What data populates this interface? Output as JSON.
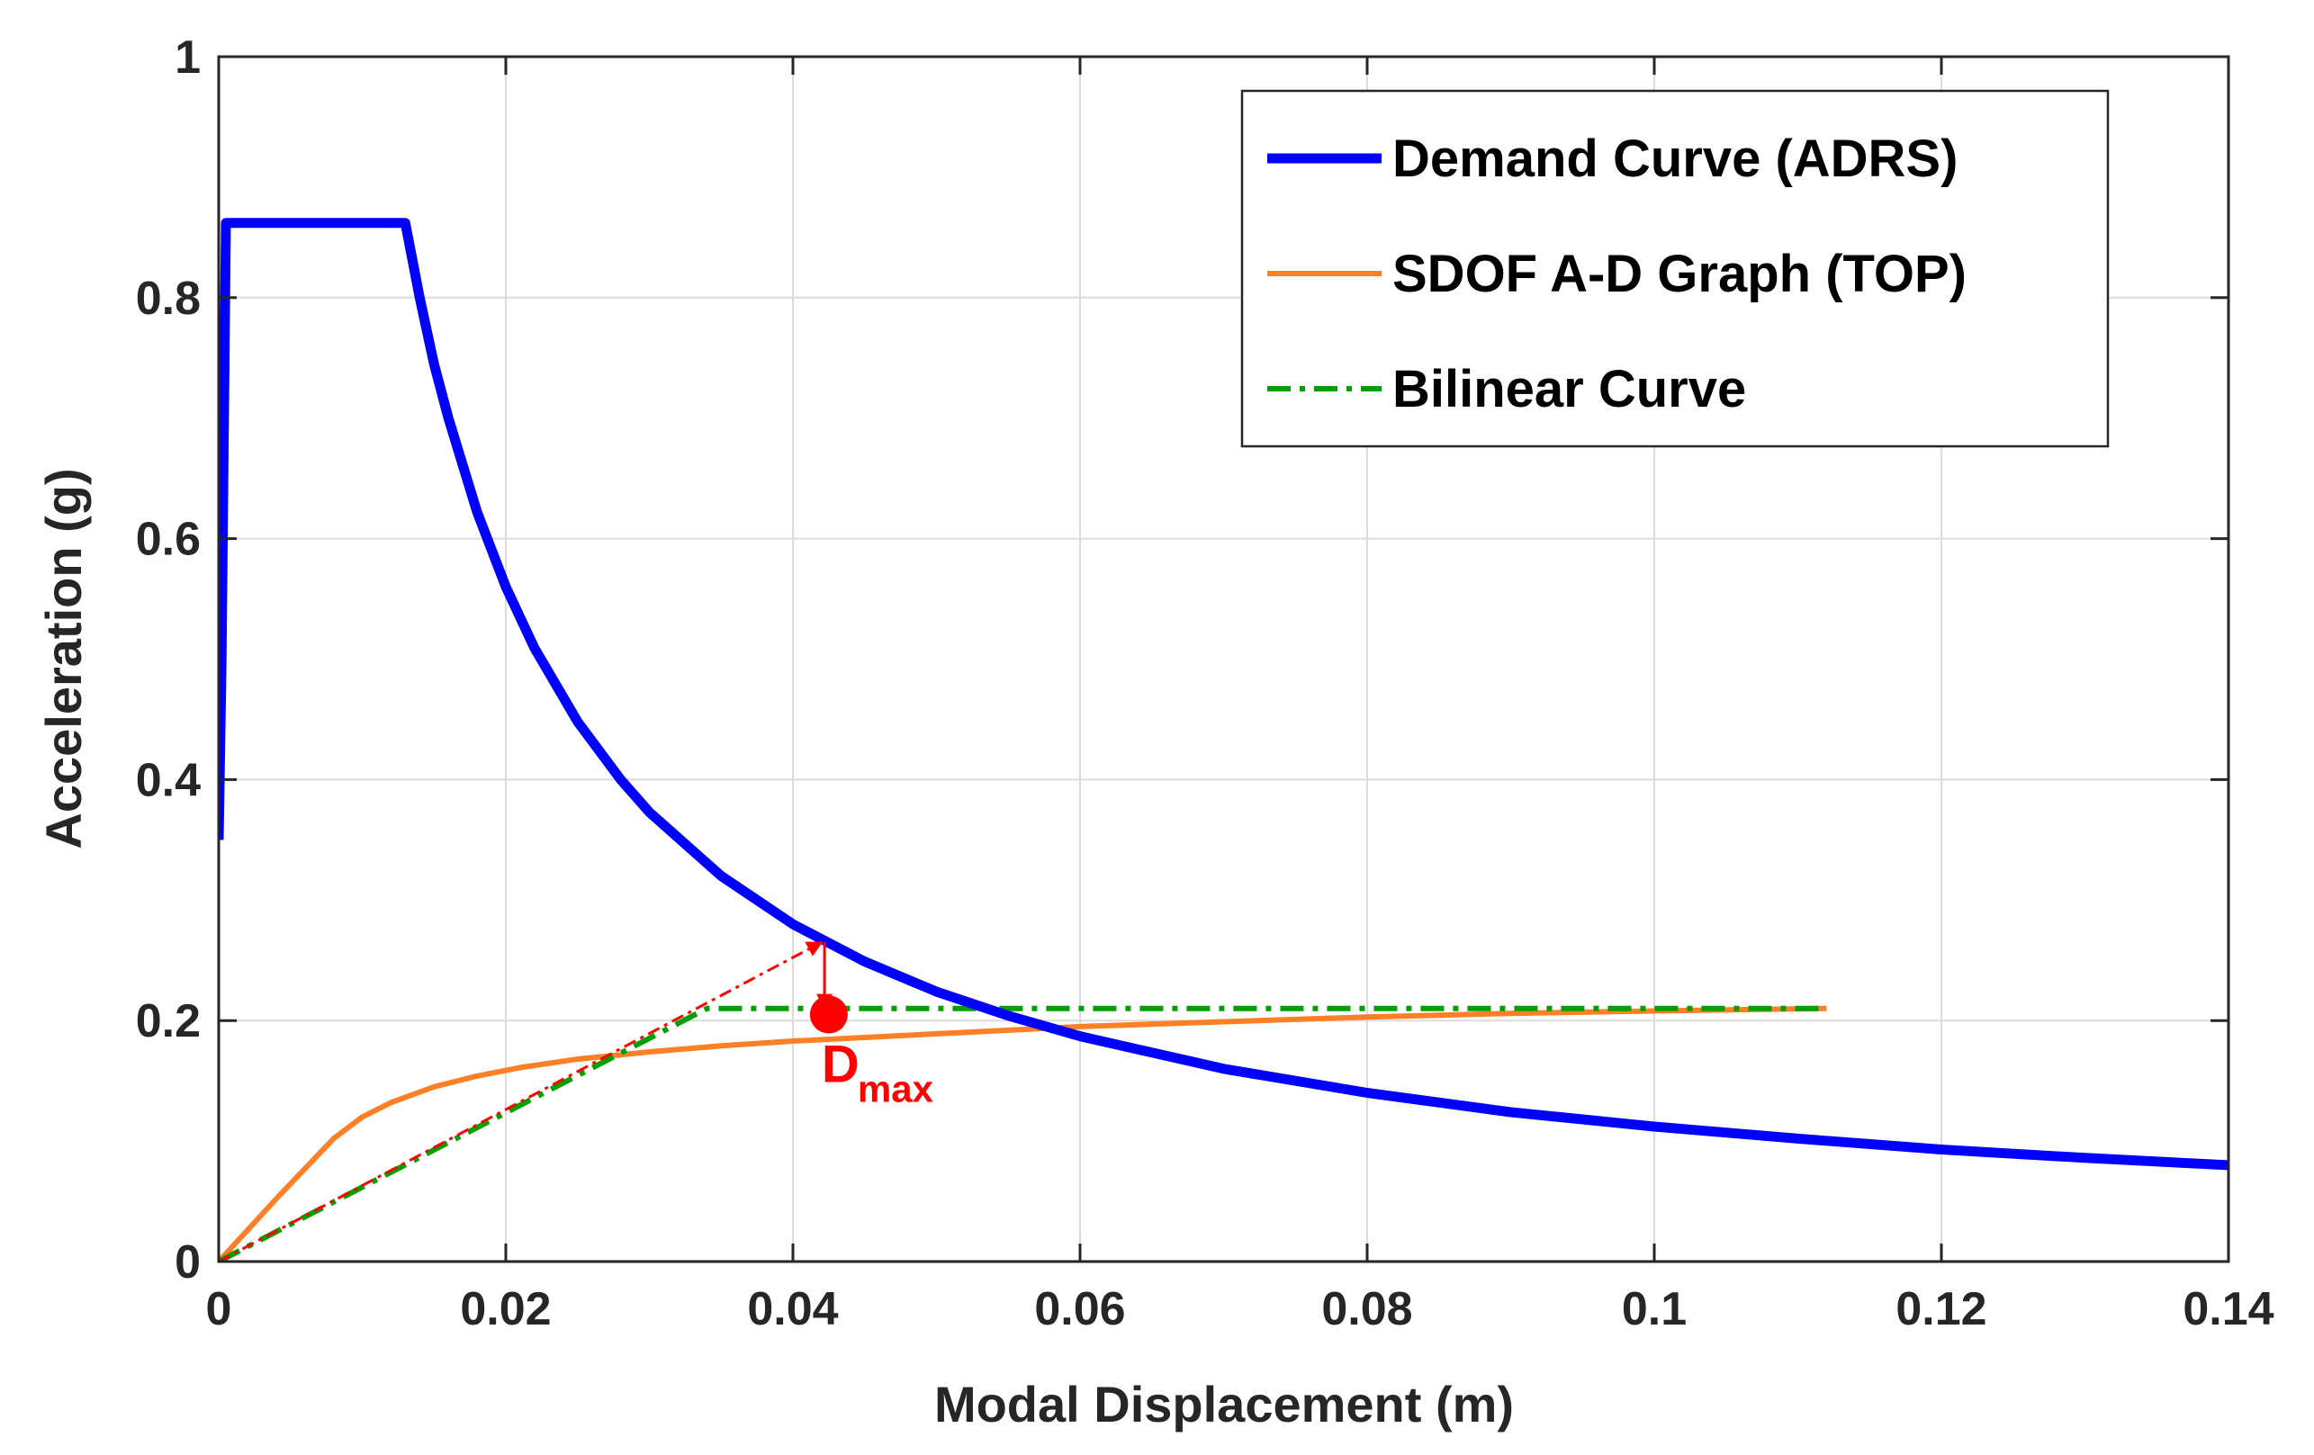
{
  "chart_data": {
    "type": "line",
    "title": "",
    "xlabel": "Modal Displacement (m)",
    "ylabel": "Acceleration (g)",
    "xlim": [
      0,
      0.14
    ],
    "ylim": [
      0,
      1
    ],
    "xticks": [
      0,
      0.02,
      0.04,
      0.06,
      0.08,
      0.1,
      0.12,
      0.14
    ],
    "xtick_labels": [
      "0",
      "0.02",
      "0.04",
      "0.06",
      "0.08",
      "0.1",
      "0.12",
      "0.14"
    ],
    "yticks": [
      0,
      0.2,
      0.4,
      0.6,
      0.8,
      1
    ],
    "ytick_labels": [
      "0",
      "0.2",
      "0.4",
      "0.6",
      "0.8",
      "1"
    ],
    "grid": true,
    "legend_position": "top-right",
    "series": [
      {
        "name": "Demand Curve (ADRS)",
        "color": "#0000ff",
        "style": "solid-thick",
        "x": [
          0,
          0.0002,
          0.0005,
          0.013,
          0.014,
          0.015,
          0.016,
          0.018,
          0.02,
          0.022,
          0.025,
          0.028,
          0.03,
          0.035,
          0.04,
          0.045,
          0.05,
          0.055,
          0.06,
          0.07,
          0.08,
          0.09,
          0.1,
          0.11,
          0.12,
          0.13,
          0.14
        ],
        "y": [
          0.35,
          0.5,
          0.862,
          0.862,
          0.8,
          0.745,
          0.7,
          0.622,
          0.56,
          0.509,
          0.448,
          0.4,
          0.373,
          0.32,
          0.28,
          0.249,
          0.224,
          0.204,
          0.187,
          0.16,
          0.14,
          0.124,
          0.112,
          0.102,
          0.093,
          0.086,
          0.08
        ]
      },
      {
        "name": "SDOF A-D Graph (TOP)",
        "color": "#ff7f27",
        "style": "solid",
        "x": [
          0,
          0.004,
          0.008,
          0.01,
          0.012,
          0.015,
          0.018,
          0.021,
          0.025,
          0.03,
          0.035,
          0.04,
          0.05,
          0.06,
          0.07,
          0.08,
          0.09,
          0.1,
          0.112
        ],
        "y": [
          0,
          0.052,
          0.102,
          0.12,
          0.132,
          0.145,
          0.154,
          0.161,
          0.168,
          0.174,
          0.179,
          0.183,
          0.189,
          0.195,
          0.199,
          0.203,
          0.206,
          0.208,
          0.21
        ]
      },
      {
        "name": "Bilinear Curve",
        "color": "#00a000",
        "style": "dashdot",
        "x": [
          0,
          0.034,
          0.112
        ],
        "y": [
          0,
          0.21,
          0.21
        ]
      }
    ],
    "annotations": [
      {
        "type": "arrow-dashed",
        "color": "#ff0000",
        "from": [
          0,
          0
        ],
        "to": [
          0.042,
          0.265
        ]
      },
      {
        "type": "arrow",
        "color": "#ff0000",
        "from": [
          0.0422,
          0.265
        ],
        "to": [
          0.0422,
          0.21
        ]
      },
      {
        "type": "point",
        "color": "#ff0000",
        "x": 0.0425,
        "y": 0.205,
        "label": "D",
        "label_sub": "max"
      }
    ]
  }
}
